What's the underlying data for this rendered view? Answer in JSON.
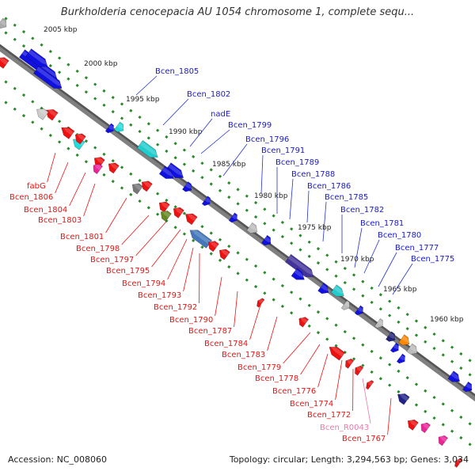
{
  "title": "Burkholderia cenocepacia AU 1054 chromosome 1, complete sequ...",
  "footer": {
    "accession": "Accession: NC_008060",
    "summary": "Topology: circular; Length: 3,294,563 bp; Genes: 3,034"
  },
  "colors": {
    "forward_strand": "#1010e0",
    "reverse_strand": "#ee1111",
    "scale_dots": "#2a8a2a",
    "backbone": "#808080",
    "pseudogene_label": "#ee77aa"
  },
  "scale_labels": [
    "2005 kbp",
    "2000 kbp",
    "1995 kbp",
    "1990 kbp",
    "1985 kbp",
    "1980 kbp",
    "1975 kbp",
    "1970 kbp",
    "1965 kbp",
    "1960 kbp"
  ],
  "forward_genes": [
    "Bcen_1805",
    "Bcen_1802",
    "nadE",
    "Bcen_1799",
    "Bcen_1796",
    "Bcen_1791",
    "Bcen_1789",
    "Bcen_1788",
    "Bcen_1786",
    "Bcen_1785",
    "Bcen_1782",
    "Bcen_1781",
    "Bcen_1780",
    "Bcen_1777",
    "Bcen_1775"
  ],
  "reverse_genes": [
    "fabG",
    "Bcen_1806",
    "Bcen_1804",
    "Bcen_1803",
    "Bcen_1801",
    "Bcen_1798",
    "Bcen_1797",
    "Bcen_1795",
    "Bcen_1794",
    "Bcen_1793",
    "Bcen_1792",
    "Bcen_1790",
    "Bcen_1787",
    "Bcen_1784",
    "Bcen_1783",
    "Bcen_1779",
    "Bcen_1778",
    "Bcen_1776",
    "Bcen_1774",
    "Bcen_1772",
    "Bcen_R0043",
    "Bcen_1767"
  ]
}
